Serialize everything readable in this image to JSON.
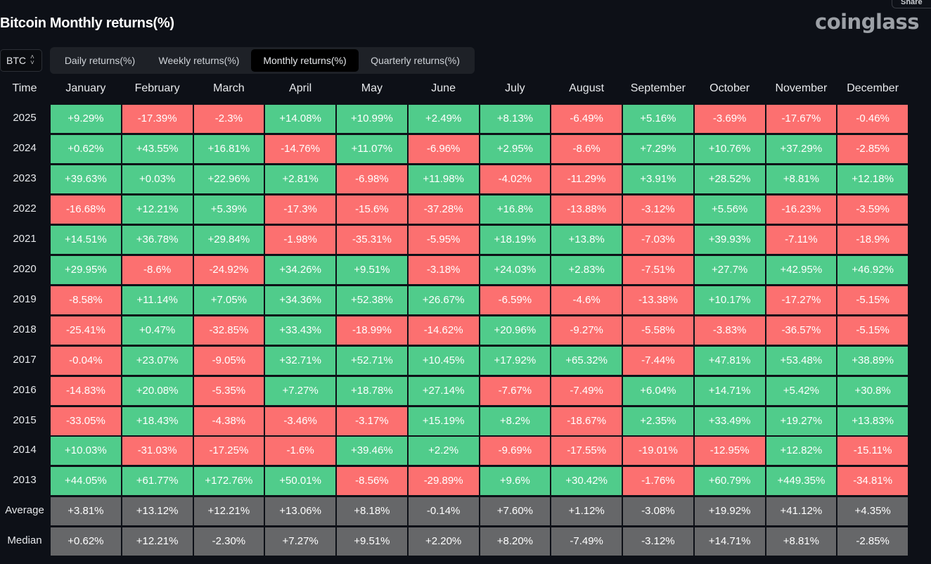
{
  "title": "Bitcoin Monthly returns(%)",
  "logo": "coinglass",
  "share_label": "Share",
  "asset_select": {
    "value": "BTC",
    "icon": "chevron-up-down-icon"
  },
  "tabs": [
    {
      "label": "Daily returns(%)",
      "active": false
    },
    {
      "label": "Weekly returns(%)",
      "active": false
    },
    {
      "label": "Monthly returns(%)",
      "active": true
    },
    {
      "label": "Quarterly returns(%)",
      "active": false
    }
  ],
  "colors": {
    "positive": "#50cc8b",
    "negative": "#fc7070",
    "summary": "#666769",
    "background": "#0d1017"
  },
  "table": {
    "time_header": "Time",
    "months": [
      "January",
      "February",
      "March",
      "April",
      "May",
      "June",
      "July",
      "August",
      "September",
      "October",
      "November",
      "December"
    ],
    "rows": [
      {
        "year": "2025",
        "values": [
          "+9.29%",
          "-17.39%",
          "-2.3%",
          "+14.08%",
          "+10.99%",
          "+2.49%",
          "+8.13%",
          "-6.49%",
          "+5.16%",
          "-3.69%",
          "-17.67%",
          "-0.46%"
        ]
      },
      {
        "year": "2024",
        "values": [
          "+0.62%",
          "+43.55%",
          "+16.81%",
          "-14.76%",
          "+11.07%",
          "-6.96%",
          "+2.95%",
          "-8.6%",
          "+7.29%",
          "+10.76%",
          "+37.29%",
          "-2.85%"
        ]
      },
      {
        "year": "2023",
        "values": [
          "+39.63%",
          "+0.03%",
          "+22.96%",
          "+2.81%",
          "-6.98%",
          "+11.98%",
          "-4.02%",
          "-11.29%",
          "+3.91%",
          "+28.52%",
          "+8.81%",
          "+12.18%"
        ]
      },
      {
        "year": "2022",
        "values": [
          "-16.68%",
          "+12.21%",
          "+5.39%",
          "-17.3%",
          "-15.6%",
          "-37.28%",
          "+16.8%",
          "-13.88%",
          "-3.12%",
          "+5.56%",
          "-16.23%",
          "-3.59%"
        ]
      },
      {
        "year": "2021",
        "values": [
          "+14.51%",
          "+36.78%",
          "+29.84%",
          "-1.98%",
          "-35.31%",
          "-5.95%",
          "+18.19%",
          "+13.8%",
          "-7.03%",
          "+39.93%",
          "-7.11%",
          "-18.9%"
        ]
      },
      {
        "year": "2020",
        "values": [
          "+29.95%",
          "-8.6%",
          "-24.92%",
          "+34.26%",
          "+9.51%",
          "-3.18%",
          "+24.03%",
          "+2.83%",
          "-7.51%",
          "+27.7%",
          "+42.95%",
          "+46.92%"
        ]
      },
      {
        "year": "2019",
        "values": [
          "-8.58%",
          "+11.14%",
          "+7.05%",
          "+34.36%",
          "+52.38%",
          "+26.67%",
          "-6.59%",
          "-4.6%",
          "-13.38%",
          "+10.17%",
          "-17.27%",
          "-5.15%"
        ]
      },
      {
        "year": "2018",
        "values": [
          "-25.41%",
          "+0.47%",
          "-32.85%",
          "+33.43%",
          "-18.99%",
          "-14.62%",
          "+20.96%",
          "-9.27%",
          "-5.58%",
          "-3.83%",
          "-36.57%",
          "-5.15%"
        ]
      },
      {
        "year": "2017",
        "values": [
          "-0.04%",
          "+23.07%",
          "-9.05%",
          "+32.71%",
          "+52.71%",
          "+10.45%",
          "+17.92%",
          "+65.32%",
          "-7.44%",
          "+47.81%",
          "+53.48%",
          "+38.89%"
        ]
      },
      {
        "year": "2016",
        "values": [
          "-14.83%",
          "+20.08%",
          "-5.35%",
          "+7.27%",
          "+18.78%",
          "+27.14%",
          "-7.67%",
          "-7.49%",
          "+6.04%",
          "+14.71%",
          "+5.42%",
          "+30.8%"
        ]
      },
      {
        "year": "2015",
        "values": [
          "-33.05%",
          "+18.43%",
          "-4.38%",
          "-3.46%",
          "-3.17%",
          "+15.19%",
          "+8.2%",
          "-18.67%",
          "+2.35%",
          "+33.49%",
          "+19.27%",
          "+13.83%"
        ]
      },
      {
        "year": "2014",
        "values": [
          "+10.03%",
          "-31.03%",
          "-17.25%",
          "-1.6%",
          "+39.46%",
          "+2.2%",
          "-9.69%",
          "-17.55%",
          "-19.01%",
          "-12.95%",
          "+12.82%",
          "-15.11%"
        ]
      },
      {
        "year": "2013",
        "values": [
          "+44.05%",
          "+61.77%",
          "+172.76%",
          "+50.01%",
          "-8.56%",
          "-29.89%",
          "+9.6%",
          "+30.42%",
          "-1.76%",
          "+60.79%",
          "+449.35%",
          "-34.81%"
        ]
      }
    ],
    "summary": [
      {
        "label": "Average",
        "values": [
          "+3.81%",
          "+13.12%",
          "+12.21%",
          "+13.06%",
          "+8.18%",
          "-0.14%",
          "+7.60%",
          "+1.12%",
          "-3.08%",
          "+19.92%",
          "+41.12%",
          "+4.35%"
        ]
      },
      {
        "label": "Median",
        "values": [
          "+0.62%",
          "+12.21%",
          "-2.30%",
          "+7.27%",
          "+9.51%",
          "+2.20%",
          "+8.20%",
          "-7.49%",
          "-3.12%",
          "+14.71%",
          "+8.81%",
          "-2.85%"
        ]
      }
    ]
  }
}
